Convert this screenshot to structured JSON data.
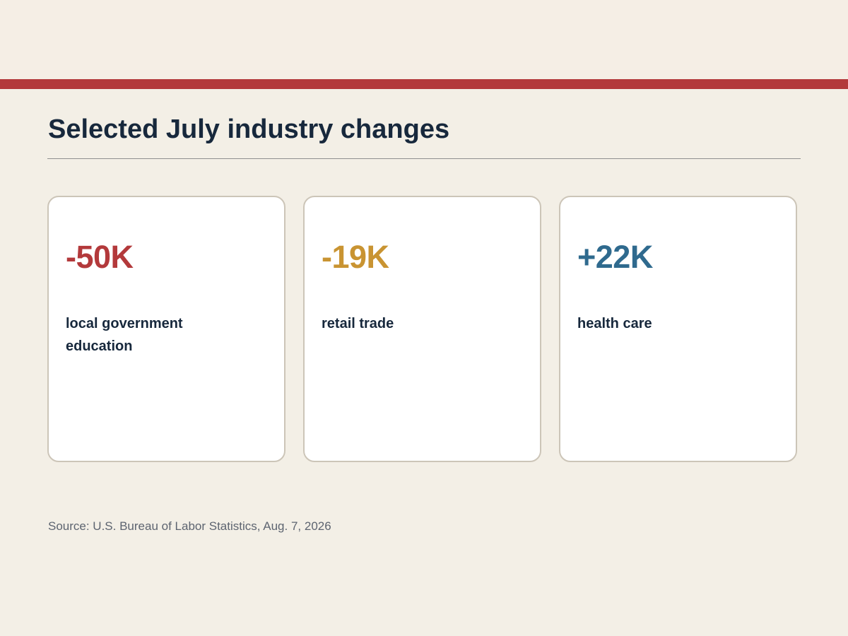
{
  "header": {
    "title": "Selected July industry changes"
  },
  "colors": {
    "accent_bar": "#b3393b",
    "negative_large": "#b3393b",
    "negative_small": "#c99432",
    "positive": "#2f6a8e",
    "title_text": "#17283c"
  },
  "cards": [
    {
      "value": "-50K",
      "label": "local government education",
      "color": "#b3393b"
    },
    {
      "value": "-19K",
      "label": "retail trade",
      "color": "#c99432"
    },
    {
      "value": "+22K",
      "label": "health care",
      "color": "#2f6a8e"
    }
  ],
  "footer": {
    "source": "Source: U.S. Bureau of Labor Statistics, Aug. 7, 2026"
  }
}
